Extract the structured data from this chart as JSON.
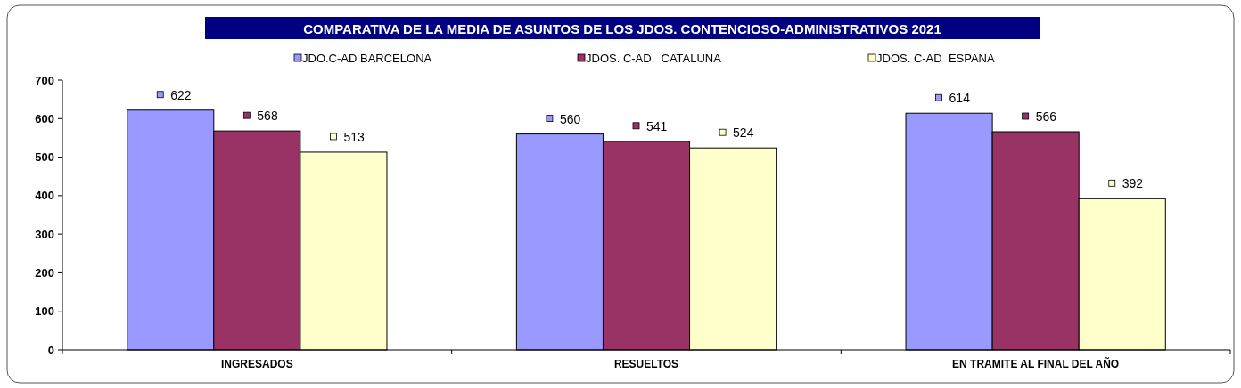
{
  "chart_data": {
    "type": "bar",
    "title": "COMPARATIVA DE LA MEDIA DE ASUNTOS  DE LOS JDOS. CONTENCIOSO-ADMINISTRATIVOS 2021",
    "categories": [
      "INGRESADOS",
      "RESUELTOS",
      "EN TRAMITE AL FINAL DEL AÑO"
    ],
    "series": [
      {
        "name": "JDO.C-AD BARCELONA",
        "color": "#9999ff",
        "values": [
          622,
          560,
          614
        ]
      },
      {
        "name": "JDOS. C-AD.  CATALUÑA",
        "color": "#993366",
        "values": [
          568,
          541,
          566
        ]
      },
      {
        "name": "JDOS. C-AD  ESPAÑA",
        "color": "#ffffcc",
        "values": [
          513,
          524,
          392
        ]
      }
    ],
    "ylim": [
      0,
      700
    ],
    "yticks": [
      0,
      100,
      200,
      300,
      400,
      500,
      600,
      700
    ],
    "grid": false,
    "legend": "top",
    "data_labels": true
  }
}
